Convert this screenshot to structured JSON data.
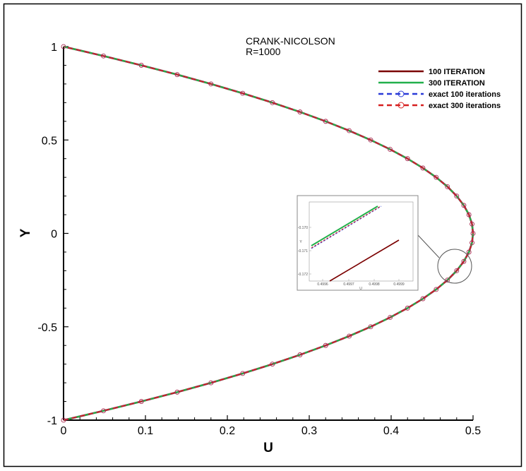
{
  "chart_data": {
    "type": "line",
    "title": "",
    "annotation": [
      "CRANK-NICOLSON",
      "R=1000"
    ],
    "xlabel": "U",
    "ylabel": "Y",
    "xlim": [
      0,
      0.5
    ],
    "ylim": [
      -1,
      1
    ],
    "x_ticks": [
      "0",
      "0.1",
      "0.2",
      "0.3",
      "0.4",
      "0.5"
    ],
    "y_ticks": [
      "-1",
      "-0.5",
      "0",
      "0.5",
      "1"
    ],
    "grid": false,
    "legend_position": "top-right",
    "y": [
      -1,
      -0.95,
      -0.9,
      -0.85,
      -0.8,
      -0.75,
      -0.7,
      -0.65,
      -0.6,
      -0.55,
      -0.5,
      -0.45,
      -0.4,
      -0.35,
      -0.3,
      -0.25,
      -0.2,
      -0.15,
      -0.1,
      -0.05,
      0,
      0.05,
      0.1,
      0.15,
      0.2,
      0.25,
      0.3,
      0.35,
      0.4,
      0.45,
      0.5,
      0.55,
      0.6,
      0.65,
      0.7,
      0.75,
      0.8,
      0.85,
      0.9,
      0.95,
      1
    ],
    "series": [
      {
        "name": "100 ITERATION",
        "color": "#7b0000",
        "style": "solid",
        "marker": "none",
        "x": [
          0,
          0.04875,
          0.095,
          0.13875,
          0.18,
          0.21875,
          0.255,
          0.28875,
          0.32,
          0.34875,
          0.375,
          0.39875,
          0.42,
          0.43875,
          0.455,
          0.46875,
          0.48,
          0.48875,
          0.495,
          0.49875,
          0.5,
          0.49875,
          0.495,
          0.48875,
          0.48,
          0.46875,
          0.455,
          0.43875,
          0.42,
          0.39875,
          0.375,
          0.34875,
          0.32,
          0.28875,
          0.255,
          0.21875,
          0.18,
          0.13875,
          0.095,
          0.04875,
          0
        ]
      },
      {
        "name": "300 ITERATION",
        "color": "#22b04b",
        "style": "solid",
        "marker": "none",
        "x": [
          0,
          0.04875,
          0.095,
          0.13875,
          0.18,
          0.21875,
          0.255,
          0.28875,
          0.32,
          0.34875,
          0.375,
          0.39875,
          0.42,
          0.43875,
          0.455,
          0.46875,
          0.48,
          0.48875,
          0.495,
          0.49875,
          0.5,
          0.49875,
          0.495,
          0.48875,
          0.48,
          0.46875,
          0.455,
          0.43875,
          0.42,
          0.39875,
          0.375,
          0.34875,
          0.32,
          0.28875,
          0.255,
          0.21875,
          0.18,
          0.13875,
          0.095,
          0.04875,
          0
        ]
      },
      {
        "name": "exact 100 iterations",
        "color": "#2a3bd8",
        "style": "dashed",
        "marker": "circle",
        "x": [
          0,
          0.04875,
          0.095,
          0.13875,
          0.18,
          0.21875,
          0.255,
          0.28875,
          0.32,
          0.34875,
          0.375,
          0.39875,
          0.42,
          0.43875,
          0.455,
          0.46875,
          0.48,
          0.48875,
          0.495,
          0.49875,
          0.5,
          0.49875,
          0.495,
          0.48875,
          0.48,
          0.46875,
          0.455,
          0.43875,
          0.42,
          0.39875,
          0.375,
          0.34875,
          0.32,
          0.28875,
          0.255,
          0.21875,
          0.18,
          0.13875,
          0.095,
          0.04875,
          0
        ]
      },
      {
        "name": "exact 300 iterations",
        "color": "#d62020",
        "style": "dashed",
        "marker": "circle",
        "x": [
          0,
          0.04875,
          0.095,
          0.13875,
          0.18,
          0.21875,
          0.255,
          0.28875,
          0.32,
          0.34875,
          0.375,
          0.39875,
          0.42,
          0.43875,
          0.455,
          0.46875,
          0.48,
          0.48875,
          0.495,
          0.49875,
          0.5,
          0.49875,
          0.495,
          0.48875,
          0.48,
          0.46875,
          0.455,
          0.43875,
          0.42,
          0.39875,
          0.375,
          0.34875,
          0.32,
          0.28875,
          0.255,
          0.21875,
          0.18,
          0.13875,
          0.095,
          0.04875,
          0
        ]
      }
    ],
    "inset": {
      "description": "zoomed view near U=0.5, Y=-0.17",
      "x_ticks": [
        "0.4996",
        "0.4997",
        "0.4998",
        "0.4999"
      ],
      "y_ticks": [
        "-0.170",
        "-0.171",
        "-0.172"
      ],
      "xlabel": "U",
      "ylabel": "Y"
    }
  }
}
